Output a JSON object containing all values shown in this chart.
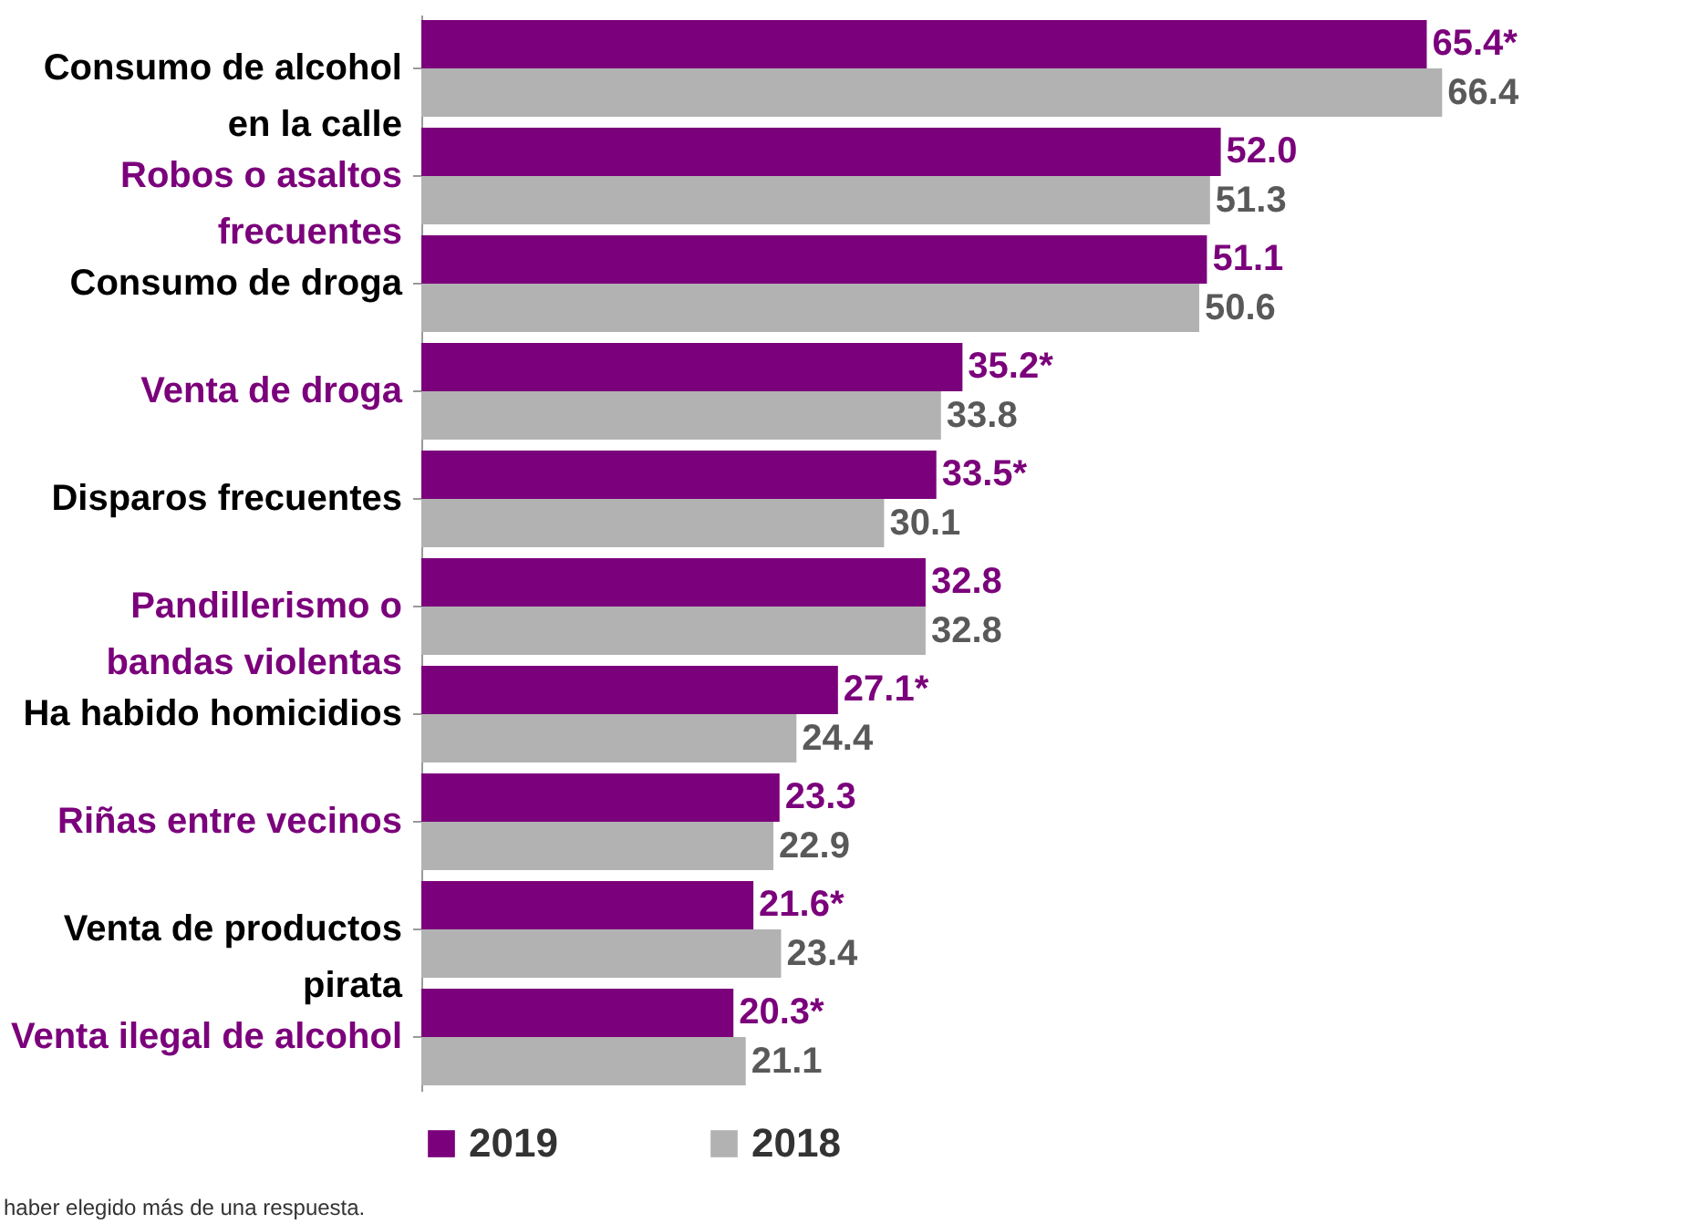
{
  "chart_data": {
    "type": "bar",
    "orientation": "horizontal",
    "legend": "bottom",
    "categories": [
      "Consumo de alcohol\nen la calle",
      "Robos o asaltos\nfrecuentes",
      "Consumo de droga",
      "Venta de droga",
      "Disparos frecuentes",
      "Pandillerismo o\nbandas violentas",
      "Ha habido homicidios",
      "Riñas entre vecinos",
      "Venta de productos\npirata",
      "Venta ilegal de alcohol"
    ],
    "series": [
      {
        "name": "2019",
        "color": "#7b007b",
        "values": [
          65.4,
          52.0,
          51.1,
          35.2,
          33.5,
          32.8,
          27.1,
          23.3,
          21.6,
          20.3
        ],
        "value_labels": [
          "65.4*",
          "52.0",
          "51.1",
          "35.2*",
          "33.5*",
          "32.8",
          "27.1*",
          "23.3",
          "21.6*",
          "20.3*"
        ]
      },
      {
        "name": "2018",
        "color": "#b2b2b2",
        "values": [
          66.4,
          51.3,
          50.6,
          33.8,
          30.1,
          32.8,
          24.4,
          22.9,
          23.4,
          21.1
        ],
        "value_labels": [
          "66.4",
          "51.3",
          "50.6",
          "33.8",
          "30.1",
          "32.8",
          "24.4",
          "22.9",
          "23.4",
          "21.1"
        ]
      }
    ],
    "annotations": [
      "haber elegido más de una respuesta."
    ]
  }
}
